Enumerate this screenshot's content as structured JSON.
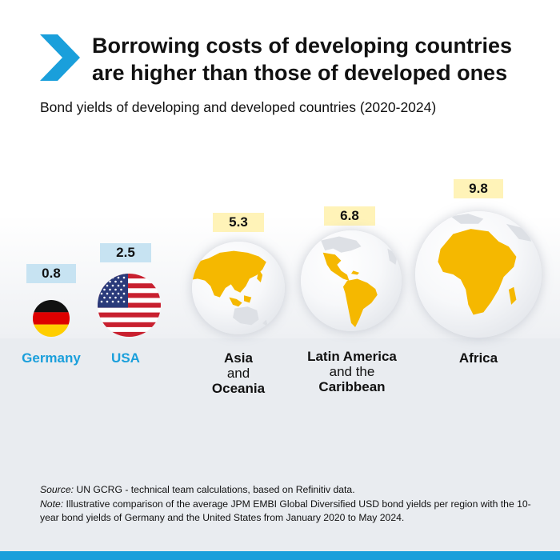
{
  "header": {
    "title_line1": "Borrowing costs of developing countries",
    "title_line2": "are higher than those of developed ones",
    "subtitle": "Bond yields of developing and developed countries (2020-2024)"
  },
  "chart_data": {
    "type": "bar",
    "title": "Borrowing costs of developing countries are higher than those of developed ones",
    "subtitle": "Bond yields of developing and developed countries (2020-2024)",
    "categories": [
      "Germany",
      "USA",
      "Asia and Oceania",
      "Latin America and the Caribbean",
      "Africa"
    ],
    "values": [
      0.8,
      2.5,
      5.3,
      6.8,
      9.8
    ],
    "value_labels": [
      "0.8",
      "2.5",
      "5.3",
      "6.8",
      "9.8"
    ],
    "groups": {
      "developed": [
        "Germany",
        "USA"
      ],
      "developing": [
        "Asia and Oceania",
        "Latin America and the Caribbean",
        "Africa"
      ]
    },
    "encoding": "bubble size proportional to bond yield",
    "colors": {
      "developed": "#1a9fdb",
      "developed_label_bg": "#c7e3f2",
      "developing_label_bg": "#fff3b8",
      "land": "#f5b800"
    }
  },
  "labels": {
    "germany": "Germany",
    "usa": "USA",
    "asia_1": "Asia",
    "asia_2": "and",
    "asia_3": "Oceania",
    "latam_1": "Latin America",
    "latam_2": "and the",
    "latam_3": "Caribbean",
    "africa": "Africa"
  },
  "icons": {
    "chevron": "chevron-right-icon",
    "germany_flag": "germany-flag-icon",
    "usa_flag": "usa-flag-icon"
  },
  "footnote": {
    "source_label": "Source:",
    "source_text": " UN GCRG - technical team calculations, based on Refinitiv data.",
    "note_label": "Note:",
    "note_text": " Illustrative comparison of the average JPM EMBI Global Diversified USD bond yields per region with the 10-year bond yields of Germany and the United States from January 2020 to May 2024."
  }
}
